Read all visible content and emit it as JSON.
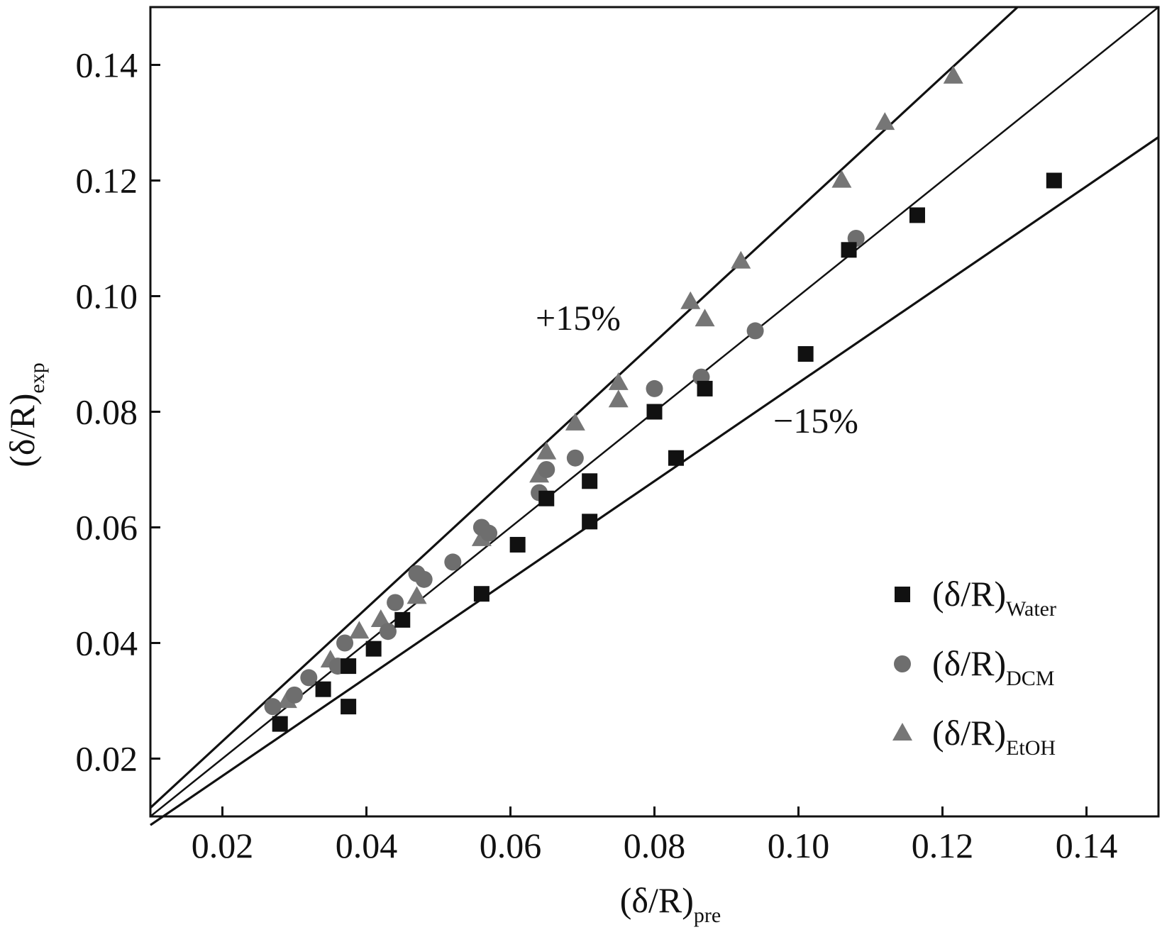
{
  "chart_data": {
    "type": "scatter",
    "title": "",
    "xlabel": {
      "main": "(δ/R)",
      "sub": "pre"
    },
    "ylabel": {
      "main": "(δ/R)",
      "sub": "exp"
    },
    "xlim": [
      0.01,
      0.15
    ],
    "ylim": [
      0.01,
      0.15
    ],
    "xticks": [
      0.02,
      0.04,
      0.06,
      0.08,
      0.1,
      0.12,
      0.14
    ],
    "xtick_labels": [
      "0.02",
      "0.04",
      "0.06",
      "0.08",
      "0.10",
      "0.12",
      "0.14"
    ],
    "yticks": [
      0.02,
      0.04,
      0.06,
      0.08,
      0.1,
      0.12,
      0.14
    ],
    "ytick_labels": [
      "0.02",
      "0.04",
      "0.06",
      "0.08",
      "0.10",
      "0.12",
      "0.14"
    ],
    "grid": false,
    "legend_position": "bottom-right",
    "reference_lines": [
      {
        "label": "",
        "slope": 1.0
      },
      {
        "label": "+15%",
        "slope": 1.15
      },
      {
        "label": "−15%",
        "slope": 0.85
      }
    ],
    "series": [
      {
        "name": "(δ/R)",
        "name_sub": "Water",
        "marker": "square",
        "color": "#111111",
        "x": [
          0.028,
          0.034,
          0.0375,
          0.0375,
          0.041,
          0.045,
          0.056,
          0.061,
          0.065,
          0.071,
          0.071,
          0.08,
          0.083,
          0.087,
          0.101,
          0.107,
          0.1165,
          0.1355
        ],
        "y": [
          0.026,
          0.032,
          0.029,
          0.036,
          0.039,
          0.044,
          0.0485,
          0.057,
          0.065,
          0.061,
          0.068,
          0.08,
          0.072,
          0.084,
          0.09,
          0.108,
          0.114,
          0.12
        ]
      },
      {
        "name": "(δ/R)",
        "name_sub": "DCM",
        "marker": "circle",
        "color": "#6e6e6e",
        "x": [
          0.027,
          0.03,
          0.032,
          0.036,
          0.037,
          0.043,
          0.044,
          0.047,
          0.048,
          0.052,
          0.056,
          0.057,
          0.064,
          0.065,
          0.069,
          0.08,
          0.0865,
          0.094,
          0.108
        ],
        "y": [
          0.029,
          0.031,
          0.034,
          0.036,
          0.04,
          0.042,
          0.047,
          0.052,
          0.051,
          0.054,
          0.06,
          0.059,
          0.066,
          0.07,
          0.072,
          0.084,
          0.086,
          0.094,
          0.11
        ]
      },
      {
        "name": "(δ/R)",
        "name_sub": "EtOH",
        "marker": "triangle",
        "color": "#767676",
        "x": [
          0.029,
          0.035,
          0.039,
          0.042,
          0.047,
          0.056,
          0.064,
          0.065,
          0.069,
          0.075,
          0.075,
          0.085,
          0.087,
          0.092,
          0.106,
          0.112,
          0.1215
        ],
        "y": [
          0.03,
          0.037,
          0.042,
          0.044,
          0.048,
          0.058,
          0.069,
          0.073,
          0.078,
          0.082,
          0.085,
          0.099,
          0.096,
          0.106,
          0.12,
          0.13,
          0.138
        ]
      }
    ]
  }
}
